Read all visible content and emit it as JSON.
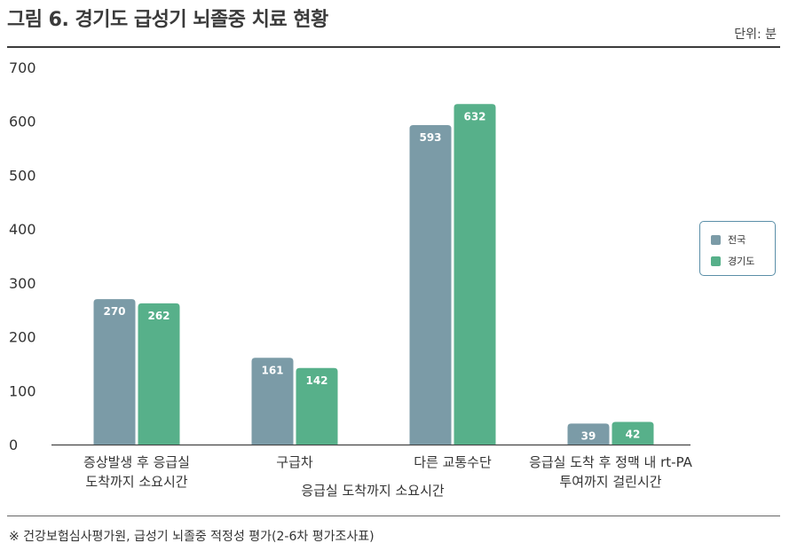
{
  "header": {
    "title": "그림 6. 경기도 급성기 뇌졸중 치료 현황",
    "unit": "단위: 분"
  },
  "footer": {
    "source": "※ 건강보험심사평가원, 급성기 뇌졸중 적정성 평가(2-6차 평가조사표)"
  },
  "colors": {
    "national": "#7b9ba7",
    "gyeonggi": "#57b08a"
  },
  "chart_data": {
    "type": "bar",
    "title": "그림 6. 경기도 급성기 뇌졸중 치료 현황",
    "unit": "단위: 분",
    "categories": [
      [
        "증상발생 후 응급실",
        "도착까지 소요시간"
      ],
      [
        "구급차"
      ],
      [
        "다른 교통수단"
      ],
      [
        "응급실 도착 후 정맥 내 rt-PA",
        "투여까지 걸린시간"
      ]
    ],
    "group_label": "응급실 도착까지 소요시간",
    "series": [
      {
        "name": "전국",
        "values": [
          270,
          161,
          593,
          39
        ]
      },
      {
        "name": "경기도",
        "values": [
          262,
          142,
          632,
          42
        ]
      }
    ],
    "yticks": [
      "0",
      "100",
      "200",
      "300",
      "400",
      "500",
      "600",
      "700"
    ],
    "ylim": [
      0,
      700
    ],
    "grid": false,
    "legend_position": "right"
  }
}
